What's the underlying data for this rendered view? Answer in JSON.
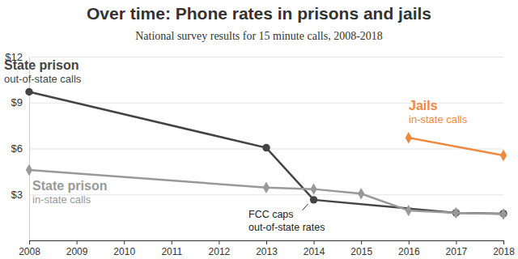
{
  "chart_data": {
    "type": "line",
    "title": "Over time: Phone rates in prisons and jails",
    "subtitle": "National survey results for 15 minute calls, 2008-2018",
    "xlim": [
      2008,
      2018
    ],
    "xticks": [
      2008,
      2009,
      2010,
      2011,
      2012,
      2013,
      2014,
      2015,
      2016,
      2017,
      2018
    ],
    "ylim": [
      0,
      12
    ],
    "yticks": [
      {
        "value": 3,
        "label": "$3"
      },
      {
        "value": 6,
        "label": "$6"
      },
      {
        "value": 9,
        "label": "$9"
      },
      {
        "value": 12,
        "label": "$12"
      }
    ],
    "grid": true,
    "series": [
      {
        "name": "State prison",
        "detail": "out-of-state calls",
        "color": "#444444",
        "marker": "circle",
        "x": [
          2008,
          2013,
          2014,
          2017,
          2018
        ],
        "values": [
          9.7,
          6.05,
          2.65,
          1.8,
          1.75
        ]
      },
      {
        "name": "State prison",
        "detail": "in-state calls",
        "color": "#999999",
        "marker": "diamond",
        "x": [
          2008,
          2013,
          2014,
          2015,
          2016,
          2017,
          2018
        ],
        "values": [
          4.6,
          3.45,
          3.35,
          3.05,
          1.95,
          1.8,
          1.72
        ]
      },
      {
        "name": "Jails",
        "detail": "in-state calls",
        "color": "#f0883e",
        "marker": "diamond",
        "x": [
          2016,
          2018
        ],
        "values": [
          6.7,
          5.55
        ]
      }
    ],
    "annotations": [
      {
        "lines": [
          "FCC caps",
          "out-of-state rates"
        ]
      }
    ]
  }
}
